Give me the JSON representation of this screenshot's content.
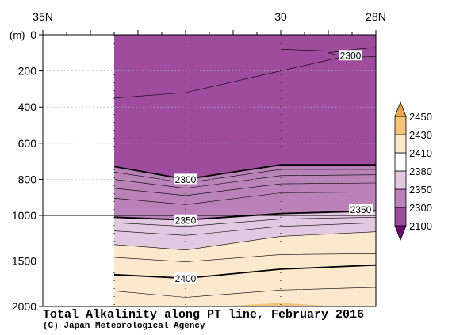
{
  "chart_data": {
    "type": "contour",
    "title": "Total Alkalinity along PT line, February 2016",
    "credit": "(C) Japan Meteorological Agency",
    "x_axis": {
      "ticks": [
        {
          "label": "35N",
          "lat": 35
        },
        {
          "label": "30",
          "lat": 30
        },
        {
          "label": "28N",
          "lat": 28
        }
      ],
      "range": [
        35,
        28
      ]
    },
    "y_axis": {
      "unit_label": "(m)",
      "ticks": [
        0,
        200,
        400,
        600,
        800,
        1000,
        1500,
        2000
      ],
      "upper": {
        "range": [
          0,
          1000
        ]
      },
      "lower": {
        "range": [
          1000,
          2000
        ]
      },
      "grid": true
    },
    "data_extent_lat": [
      33.5,
      28
    ],
    "stations_lat": [
      33.5,
      32,
      30
    ],
    "legend": {
      "placement": "right",
      "levels": [
        2100,
        2300,
        2350,
        2380,
        2410,
        2430,
        2450
      ],
      "labels": [
        "2100",
        "2300",
        "2350",
        "2380",
        "2410",
        "2430",
        "2450"
      ],
      "colors": [
        "#6e0a6e",
        "#a04c9e",
        "#bb82ba",
        "#e2c8e0",
        "#ffffff",
        "#fbe8cd",
        "#f5c37a",
        "#eaa54c"
      ]
    },
    "fill_levels": [
      {
        "lower": 2300,
        "color": "#a04c9e"
      },
      {
        "lower": 2350,
        "color": "#bb82ba"
      },
      {
        "lower": 2380,
        "color": "#e2c8e0"
      },
      {
        "lower": 2410,
        "color": "#fbe8cd"
      },
      {
        "lower": 2430,
        "color": "#f5c37a"
      }
    ],
    "contours": [
      {
        "value": 2300,
        "bold": true,
        "depths_m": [
          730,
          800,
          720,
          720
        ],
        "label": "2300",
        "label_lat": 32
      },
      {
        "value": 2310,
        "bold": false,
        "depths_m": [
          760,
          820,
          745,
          745
        ]
      },
      {
        "value": 2320,
        "bold": false,
        "depths_m": [
          800,
          850,
          780,
          775
        ]
      },
      {
        "value": 2330,
        "bold": false,
        "depths_m": [
          850,
          890,
          825,
          820
        ]
      },
      {
        "value": 2340,
        "bold": false,
        "depths_m": [
          905,
          940,
          875,
          870
        ]
      },
      {
        "value": 2350,
        "bold": true,
        "depths_m": [
          1020,
          1050,
          990,
          975
        ],
        "label": "2350",
        "label_lat": 32,
        "label2_lat": 28.25
      },
      {
        "value": 2360,
        "bold": false,
        "depths_m": [
          1080,
          1120,
          1040,
          1020
        ]
      },
      {
        "value": 2370,
        "bold": false,
        "depths_m": [
          1170,
          1220,
          1120,
          1080
        ]
      },
      {
        "value": 2380,
        "bold": false,
        "depths_m": [
          1320,
          1380,
          1230,
          1180
        ]
      },
      {
        "value": 2390,
        "bold": false,
        "depths_m": [
          1460,
          1510,
          1430,
          1420
        ]
      },
      {
        "value": 2400,
        "bold": true,
        "depths_m": [
          1650,
          1690,
          1590,
          1545
        ],
        "label": "2400",
        "label_lat": 32
      },
      {
        "value": 2410,
        "bold": false,
        "depths_m": [
          1830,
          1900,
          1820,
          1790
        ]
      }
    ],
    "upper_contours": [
      {
        "value": 2290,
        "bold": false,
        "depths_m": [
          350,
          320,
          200,
          80
        ]
      },
      {
        "value": 2300,
        "bold": false,
        "depths_m": [
          null,
          null,
          80,
          100
        ],
        "label": "2300",
        "label_lat": 28.5,
        "label_depth_m": 115
      }
    ]
  }
}
